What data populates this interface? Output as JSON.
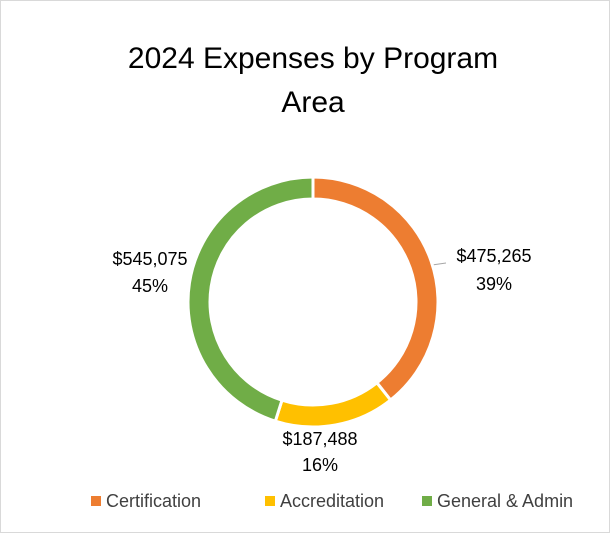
{
  "chart_data": {
    "type": "donut",
    "title": [
      "2024 Expenses by Program",
      "Area"
    ],
    "categories": [
      "Certification",
      "Accreditation",
      "General & Admin"
    ],
    "values": [
      475265,
      187488,
      545075
    ],
    "value_labels": [
      "$475,265",
      "$187,488",
      "$545,075"
    ],
    "percent_labels": [
      "39%",
      "16%",
      "45%"
    ],
    "colors": [
      "#ed7d31",
      "#ffc000",
      "#70ad47"
    ],
    "legend": "bottom"
  }
}
